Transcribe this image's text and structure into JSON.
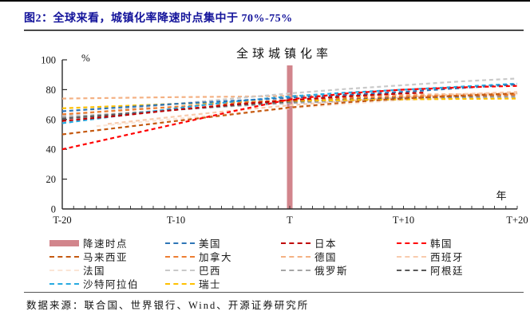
{
  "header": {
    "title": "图2：全球来看，城镇化率降速时点集中于 70%-75%",
    "title_color": "#14149b"
  },
  "footer": {
    "source": "数据来源：联合国、世界银行、Wind、开源证券研究所"
  },
  "chart_data": {
    "type": "line",
    "annotation": "全球城镇化率",
    "y_unit": "%",
    "x_unit": "年",
    "x_tick_labels": [
      "T-20",
      "T-10",
      "T",
      "T+10",
      "T+20"
    ],
    "x_tick_positions": [
      -20,
      -10,
      0,
      10,
      20
    ],
    "y_ticks": [
      0,
      20,
      40,
      60,
      80,
      100
    ],
    "xlim": [
      -20,
      20
    ],
    "ylim": [
      0,
      100
    ],
    "grid": false,
    "legend_position": "bottom",
    "marker": {
      "label": "降速时点",
      "x": 0,
      "color": "#d2858c"
    },
    "series": [
      {
        "name": "美国",
        "color": "#2e75b6",
        "x": [
          -20,
          -15,
          -10,
          -5,
          0,
          5,
          10,
          15,
          20
        ],
        "values": [
          65.5,
          68,
          70.5,
          72.5,
          74.5,
          76.5,
          78.5,
          81,
          83.5
        ]
      },
      {
        "name": "日本",
        "color": "#c00000",
        "x": [
          -20,
          -15,
          -10,
          -5,
          0,
          5,
          10,
          12
        ],
        "values": [
          59,
          62.5,
          66.5,
          70,
          73,
          75.5,
          77.5,
          78
        ]
      },
      {
        "name": "韩国",
        "color": "#ff0000",
        "x": [
          -20,
          -15,
          -10,
          -5,
          0,
          5,
          10,
          15,
          20
        ],
        "values": [
          40,
          48.5,
          57,
          65.5,
          73.5,
          77.5,
          80,
          81.5,
          82.5
        ]
      },
      {
        "name": "马来西亚",
        "color": "#c55a11",
        "x": [
          -20,
          -15,
          -10,
          -5,
          0,
          5,
          10,
          15,
          20
        ],
        "values": [
          50,
          54.5,
          59,
          63.5,
          68,
          71.5,
          74,
          76,
          77.5
        ]
      },
      {
        "name": "加拿大",
        "color": "#ed7d31",
        "x": [
          -20,
          -15,
          -10,
          -5,
          0,
          5,
          10,
          15,
          20
        ],
        "values": [
          63.5,
          66,
          68.5,
          71,
          73,
          74.5,
          75.5,
          76,
          76.5
        ]
      },
      {
        "name": "德国",
        "color": "#f4b183",
        "x": [
          -20,
          -15,
          -10,
          -5,
          0,
          5,
          10,
          15,
          20
        ],
        "values": [
          74,
          74.5,
          75,
          75.3,
          75.8,
          76.2,
          76.6,
          77,
          77.5
        ]
      },
      {
        "name": "西班牙",
        "color": "#f8cbad",
        "x": [
          -16,
          -10,
          -5,
          0,
          5,
          10,
          15,
          20
        ],
        "values": [
          57,
          62,
          66,
          69.5,
          72.5,
          75,
          77,
          78.5
        ]
      },
      {
        "name": "法国",
        "color": "#fbe5d6",
        "x": [
          -17,
          -10,
          -5,
          0,
          5,
          10,
          15,
          20
        ],
        "values": [
          55.5,
          60.5,
          64,
          67.5,
          70.5,
          73,
          75,
          76.5
        ]
      },
      {
        "name": "巴西",
        "color": "#c9c9c9",
        "x": [
          -20,
          -15,
          -10,
          -5,
          0,
          5,
          10,
          15,
          20
        ],
        "values": [
          62.5,
          66.5,
          70.5,
          74,
          77.5,
          80.5,
          83,
          85.5,
          87.5
        ]
      },
      {
        "name": "俄罗斯",
        "color": "#a6a6a6",
        "x": [
          -20,
          -15,
          -10,
          -5,
          0,
          5,
          10,
          15,
          20
        ],
        "values": [
          61.5,
          64,
          66.5,
          69,
          71,
          72.5,
          73.5,
          74.5,
          75
        ]
      },
      {
        "name": "阿根廷",
        "color": "#595959",
        "x": [
          -20,
          -15,
          -10,
          -5,
          0,
          5,
          10,
          15,
          20
        ],
        "values": [
          60.5,
          63.5,
          66.5,
          69.5,
          72,
          73.5,
          74.5,
          75.5,
          76.3
        ]
      },
      {
        "name": "沙特阿拉伯",
        "color": "#27aae1",
        "x": [
          -20,
          -15,
          -10,
          -5,
          0,
          5,
          10,
          15,
          20
        ],
        "values": [
          57.5,
          62.5,
          67.5,
          72,
          75.5,
          78,
          80,
          82,
          84
        ]
      },
      {
        "name": "瑞士",
        "color": "#ffc000",
        "x": [
          -20,
          -15,
          -10,
          -5,
          0,
          5,
          10,
          15,
          20
        ],
        "values": [
          67.5,
          69,
          70.5,
          71.5,
          72.5,
          73,
          73.5,
          73.8,
          74
        ]
      }
    ]
  }
}
